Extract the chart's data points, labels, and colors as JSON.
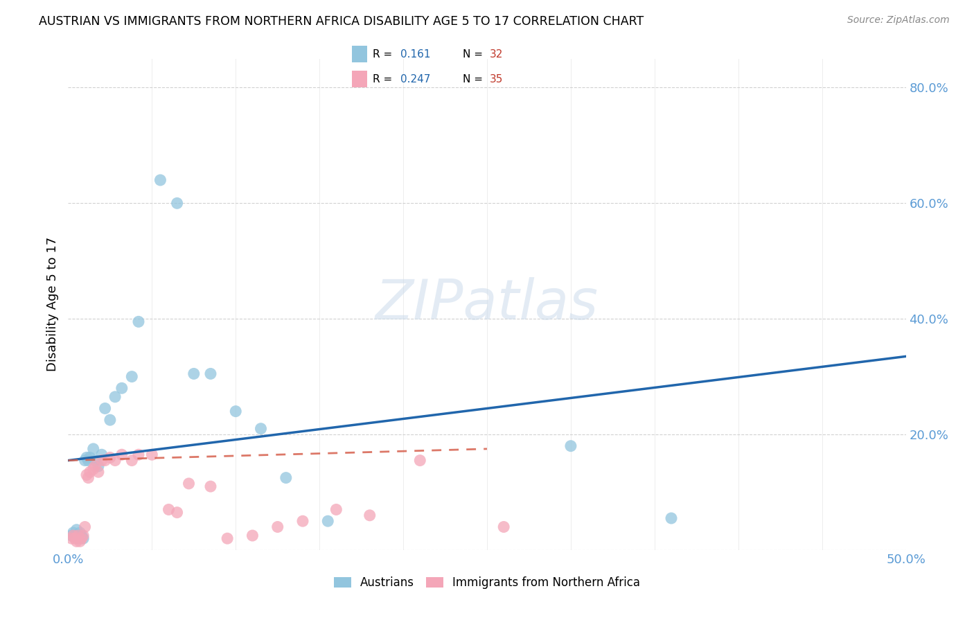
{
  "title": "AUSTRIAN VS IMMIGRANTS FROM NORTHERN AFRICA DISABILITY AGE 5 TO 17 CORRELATION CHART",
  "source": "Source: ZipAtlas.com",
  "ylabel": "Disability Age 5 to 17",
  "xlim": [
    0.0,
    0.5
  ],
  "ylim": [
    0.0,
    0.85
  ],
  "blue_color": "#92c5de",
  "pink_color": "#f4a6b8",
  "blue_line_color": "#2166ac",
  "pink_line_color": "#d6604d",
  "axis_color": "#5b9bd5",
  "legend_R_color": "#2166ac",
  "legend_N_color": "#c0392b",
  "austrians_R": 0.161,
  "austrians_N": 32,
  "immigrants_R": 0.247,
  "immigrants_N": 35,
  "blue_line_x0": 0.0,
  "blue_line_y0": 0.155,
  "blue_line_x1": 0.5,
  "blue_line_y1": 0.335,
  "pink_line_x0": 0.0,
  "pink_line_y0": 0.155,
  "pink_line_x1": 0.25,
  "pink_line_y1": 0.175,
  "austrians_x": [
    0.002,
    0.003,
    0.004,
    0.005,
    0.006,
    0.007,
    0.008,
    0.009,
    0.01,
    0.011,
    0.012,
    0.013,
    0.015,
    0.016,
    0.018,
    0.02,
    0.022,
    0.025,
    0.028,
    0.032,
    0.038,
    0.042,
    0.055,
    0.065,
    0.075,
    0.085,
    0.1,
    0.115,
    0.13,
    0.155,
    0.3,
    0.36
  ],
  "austrians_y": [
    0.025,
    0.03,
    0.025,
    0.035,
    0.02,
    0.03,
    0.025,
    0.02,
    0.155,
    0.16,
    0.155,
    0.16,
    0.175,
    0.155,
    0.145,
    0.165,
    0.245,
    0.225,
    0.265,
    0.28,
    0.3,
    0.395,
    0.64,
    0.6,
    0.305,
    0.305,
    0.24,
    0.21,
    0.125,
    0.05,
    0.18,
    0.055
  ],
  "immigrants_x": [
    0.002,
    0.003,
    0.004,
    0.005,
    0.006,
    0.007,
    0.008,
    0.009,
    0.01,
    0.011,
    0.012,
    0.013,
    0.015,
    0.016,
    0.018,
    0.02,
    0.022,
    0.025,
    0.028,
    0.032,
    0.038,
    0.042,
    0.05,
    0.06,
    0.065,
    0.072,
    0.085,
    0.095,
    0.11,
    0.125,
    0.14,
    0.16,
    0.18,
    0.21,
    0.26
  ],
  "immigrants_y": [
    0.02,
    0.025,
    0.02,
    0.015,
    0.025,
    0.015,
    0.02,
    0.025,
    0.04,
    0.13,
    0.125,
    0.135,
    0.14,
    0.145,
    0.135,
    0.155,
    0.155,
    0.16,
    0.155,
    0.165,
    0.155,
    0.165,
    0.165,
    0.07,
    0.065,
    0.115,
    0.11,
    0.02,
    0.025,
    0.04,
    0.05,
    0.07,
    0.06,
    0.155,
    0.04
  ],
  "watermark_text": "ZIPatlas"
}
